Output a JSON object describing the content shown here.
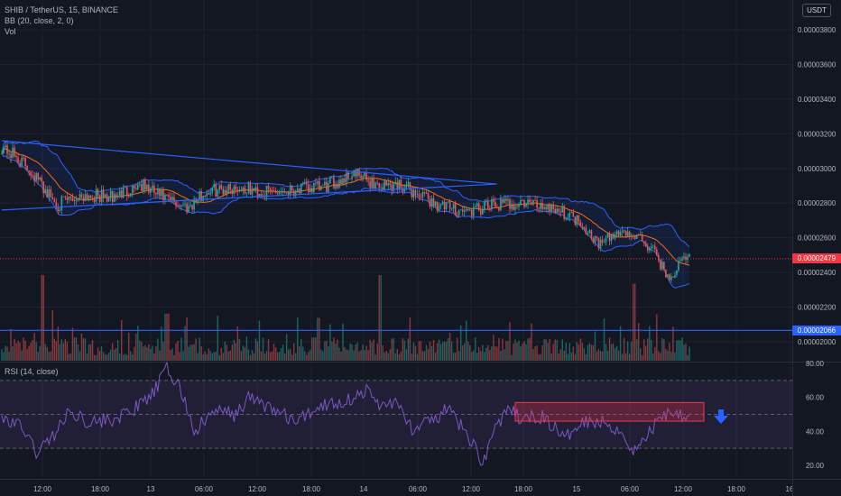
{
  "legend": {
    "title": "SHIB / TetherUS, 15, BINANCE",
    "bb": "BB (20, close, 2, 0)",
    "vol": "Vol",
    "rsi": "RSI (14, close)"
  },
  "currency_button": "USDT",
  "price_axis": {
    "ticks": [
      "0.00003800",
      "0.00003600",
      "0.00003400",
      "0.00003200",
      "0.00003000",
      "0.00002800",
      "0.00002600",
      "0.00002400",
      "0.00002200",
      "0.00002000"
    ],
    "last_price": "0.00002479",
    "level_price": "0.00002066"
  },
  "rsi_axis": {
    "ticks": [
      "80.00",
      "60.00",
      "40.00",
      "20.00"
    ]
  },
  "time_axis": {
    "ticks": [
      "12:00",
      "18:00",
      "13",
      "06:00",
      "12:00",
      "18:00",
      "14",
      "06:00",
      "12:00",
      "18:00",
      "15",
      "06:00",
      "12:00",
      "18:00",
      "16"
    ]
  },
  "colors": {
    "background": "#131722",
    "up": "#26a69a",
    "down": "#ef5350",
    "bb_band": "#2962ff",
    "bb_basis": "#ff6d00",
    "rsi_line": "#7e57c2",
    "last_price": "#f23645",
    "level_line": "#2962ff",
    "arrow": "#2962ff"
  },
  "chart_data": {
    "type": "candlestick",
    "symbol": "SHIB / TetherUS",
    "interval": "15",
    "exchange": "BINANCE",
    "indicators": [
      "BB (20, close, 2, 0)",
      "Vol",
      "RSI (14, close)"
    ],
    "price_range": [
      1.95e-05,
      3.98e-05
    ],
    "close_path": [
      [
        0,
        3.13e-05
      ],
      [
        4,
        3e-05
      ],
      [
        8,
        2.79e-05
      ],
      [
        12,
        2.85e-05
      ],
      [
        16,
        2.83e-05
      ],
      [
        20,
        2.91e-05
      ],
      [
        24,
        2.82e-05
      ],
      [
        27,
        2.78e-05
      ],
      [
        30,
        2.87e-05
      ],
      [
        34,
        2.89e-05
      ],
      [
        38,
        2.86e-05
      ],
      [
        42,
        2.88e-05
      ],
      [
        47,
        2.89e-05
      ],
      [
        51,
        2.97e-05
      ],
      [
        55,
        2.9e-05
      ],
      [
        58,
        2.91e-05
      ],
      [
        60,
        2.86e-05
      ],
      [
        64,
        2.78e-05
      ],
      [
        68,
        2.75e-05
      ],
      [
        72,
        2.79e-05
      ],
      [
        76,
        2.8e-05
      ],
      [
        80,
        2.78e-05
      ],
      [
        84,
        2.7e-05
      ],
      [
        87,
        2.56e-05
      ],
      [
        90,
        2.64e-05
      ],
      [
        93,
        2.59e-05
      ],
      [
        95,
        2.51e-05
      ],
      [
        97,
        2.36e-05
      ],
      [
        99,
        2.47e-05
      ],
      [
        100,
        2.5e-05
      ]
    ],
    "trendline_upper": [
      [
        0,
        3.16e-05
      ],
      [
        72,
        2.91e-05
      ]
    ],
    "trendline_lower": [
      [
        0,
        2.76e-05
      ],
      [
        72,
        2.91e-05
      ]
    ],
    "horizontal_level": 2.066e-05,
    "last_price": 2.479e-05,
    "volume_spikes": [
      [
        6,
        1.0
      ],
      [
        55,
        1.0
      ],
      [
        92,
        0.9
      ],
      [
        24,
        0.55
      ],
      [
        46,
        0.5
      ]
    ],
    "rsi_range": [
      13,
      83
    ],
    "rsi_bands": [
      70,
      50,
      30
    ],
    "rsi_path": [
      [
        0,
        48
      ],
      [
        3,
        42
      ],
      [
        5,
        28
      ],
      [
        7,
        35
      ],
      [
        10,
        52
      ],
      [
        13,
        45
      ],
      [
        17,
        48
      ],
      [
        20,
        55
      ],
      [
        22,
        62
      ],
      [
        24,
        77
      ],
      [
        26,
        65
      ],
      [
        28,
        40
      ],
      [
        31,
        52
      ],
      [
        34,
        50
      ],
      [
        36,
        60
      ],
      [
        40,
        52
      ],
      [
        43,
        45
      ],
      [
        46,
        55
      ],
      [
        50,
        58
      ],
      [
        53,
        64
      ],
      [
        55,
        55
      ],
      [
        57,
        58
      ],
      [
        60,
        40
      ],
      [
        62,
        45
      ],
      [
        65,
        53
      ],
      [
        68,
        36
      ],
      [
        70,
        22
      ],
      [
        72,
        45
      ],
      [
        74,
        52
      ],
      [
        76,
        46
      ],
      [
        78,
        50
      ],
      [
        80,
        44
      ],
      [
        82,
        35
      ],
      [
        84,
        47
      ],
      [
        86,
        46
      ],
      [
        88,
        45
      ],
      [
        90,
        40
      ],
      [
        92,
        28
      ],
      [
        94,
        38
      ],
      [
        96,
        50
      ],
      [
        98,
        52
      ],
      [
        100,
        49
      ]
    ],
    "rsi_highlight": {
      "rsi_low": 46,
      "rsi_high": 57
    },
    "x_ticks": [
      "12:00",
      "18:00",
      "13",
      "06:00",
      "12:00",
      "18:00",
      "14",
      "06:00",
      "12:00",
      "18:00",
      "15",
      "06:00",
      "12:00",
      "18:00",
      "16"
    ],
    "y_ticks": [
      "0.00003800",
      "0.00003600",
      "0.00003400",
      "0.00003200",
      "0.00003000",
      "0.00002800",
      "0.00002600",
      "0.00002400",
      "0.00002200",
      "0.00002000"
    ],
    "rsi_ticks": [
      "80.00",
      "60.00",
      "40.00",
      "20.00"
    ]
  }
}
